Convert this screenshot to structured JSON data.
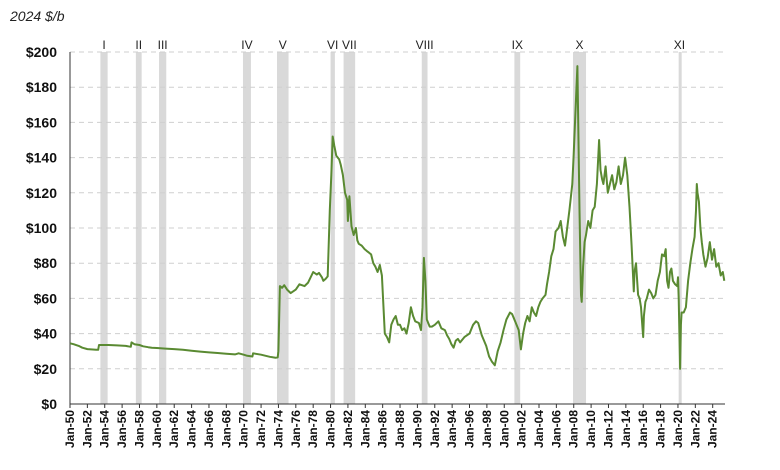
{
  "chart_data": {
    "type": "line",
    "unit_label": "2024 $/b",
    "ylim": [
      0,
      200
    ],
    "xlim": [
      "1950-01",
      "2025-06"
    ],
    "y_ticks": [
      "$0",
      "$20",
      "$40",
      "$60",
      "$80",
      "$100",
      "$120",
      "$140",
      "$160",
      "$180",
      "$200"
    ],
    "y_tick_values": [
      0,
      20,
      40,
      60,
      80,
      100,
      120,
      140,
      160,
      180,
      200
    ],
    "x_ticks": [
      "Jan-50",
      "Jan-52",
      "Jan-54",
      "Jan-56",
      "Jan-58",
      "Jan-60",
      "Jan-62",
      "Jan-64",
      "Jan-66",
      "Jan-68",
      "Jan-70",
      "Jan-72",
      "Jan-74",
      "Jan-76",
      "Jan-78",
      "Jan-80",
      "Jan-82",
      "Jan-84",
      "Jan-86",
      "Jan-88",
      "Jan-90",
      "Jan-92",
      "Jan-94",
      "Jan-96",
      "Jan-98",
      "Jan-00",
      "Jan-02",
      "Jan-04",
      "Jan-06",
      "Jan-08",
      "Jan-10",
      "Jan-12",
      "Jan-14",
      "Jan-16",
      "Jan-18",
      "Jan-20",
      "Jan-22",
      "Jan-24"
    ],
    "grid": "horizontal dashed",
    "line_color": "#5a8a32",
    "band_color": "#d9d9d9",
    "recessions": [
      {
        "label": "I",
        "start": "1953-07",
        "end": "1954-05"
      },
      {
        "label": "II",
        "start": "1957-08",
        "end": "1958-04"
      },
      {
        "label": "III",
        "start": "1960-04",
        "end": "1961-02"
      },
      {
        "label": "IV",
        "start": "1969-12",
        "end": "1970-11"
      },
      {
        "label": "V",
        "start": "1973-11",
        "end": "1975-03"
      },
      {
        "label": "VI",
        "start": "1980-01",
        "end": "1980-07"
      },
      {
        "label": "VII",
        "start": "1981-07",
        "end": "1982-11"
      },
      {
        "label": "VIII",
        "start": "1990-07",
        "end": "1991-03"
      },
      {
        "label": "IX",
        "start": "2001-03",
        "end": "2001-11"
      },
      {
        "label": "X",
        "start": "2007-12",
        "end": "2009-06"
      },
      {
        "label": "XI",
        "start": "2020-02",
        "end": "2020-04"
      }
    ],
    "series": [
      {
        "x": [
          "1950-01",
          "1950-06",
          "1951-01",
          "1951-06",
          "1952-01",
          "1952-06",
          "1953-01",
          "1953-04",
          "1953-05",
          "1954-06",
          "1955-06",
          "1956-06",
          "1957-01",
          "1957-02",
          "1957-06",
          "1958-01",
          "1958-06",
          "1959-01",
          "1959-06",
          "1960-01",
          "1961-01",
          "1962-01",
          "1963-01",
          "1964-01",
          "1965-01",
          "1966-01",
          "1967-01",
          "1968-01",
          "1969-01",
          "1969-06",
          "1970-01",
          "1970-06",
          "1971-01",
          "1971-02",
          "1972-01",
          "1973-01",
          "1973-06",
          "1973-09",
          "1973-12",
          "1974-01",
          "1974-03",
          "1974-06",
          "1974-09",
          "1975-01",
          "1975-06",
          "1976-01",
          "1976-06",
          "1977-01",
          "1977-06",
          "1978-01",
          "1978-06",
          "1978-09",
          "1979-01",
          "1979-03",
          "1979-06",
          "1979-09",
          "1979-12",
          "1980-02",
          "1980-04",
          "1980-06",
          "1980-09",
          "1981-01",
          "1981-03",
          "1981-06",
          "1981-09",
          "1981-12",
          "1982-01",
          "1982-03",
          "1982-06",
          "1982-09",
          "1982-12",
          "1983-02",
          "1983-04",
          "1983-08",
          "1983-12",
          "1984-03",
          "1984-06",
          "1984-09",
          "1984-12",
          "1985-03",
          "1985-06",
          "1985-09",
          "1985-12",
          "1986-02",
          "1986-04",
          "1986-07",
          "1986-10",
          "1987-01",
          "1987-04",
          "1987-07",
          "1987-10",
          "1988-01",
          "1988-04",
          "1988-07",
          "1988-10",
          "1989-01",
          "1989-04",
          "1989-07",
          "1989-10",
          "1990-03",
          "1990-06",
          "1990-08",
          "1990-10",
          "1990-12",
          "1991-02",
          "1991-06",
          "1991-09",
          "1992-01",
          "1992-06",
          "1992-10",
          "1993-03",
          "1993-06",
          "1993-09",
          "1993-12",
          "1994-03",
          "1994-06",
          "1994-09",
          "1994-12",
          "1995-06",
          "1996-01",
          "1996-06",
          "1996-10",
          "1997-01",
          "1997-06",
          "1997-12",
          "1998-04",
          "1998-08",
          "1998-12",
          "1999-04",
          "1999-08",
          "1999-12",
          "2000-04",
          "2000-09",
          "2000-12",
          "2001-04",
          "2001-09",
          "2001-12",
          "2002-03",
          "2002-06",
          "2002-09",
          "2002-12",
          "2003-03",
          "2003-06",
          "2003-09",
          "2003-12",
          "2004-03",
          "2004-06",
          "2004-10",
          "2004-12",
          "2005-03",
          "2005-06",
          "2005-09",
          "2005-12",
          "2006-04",
          "2006-07",
          "2006-10",
          "2007-01",
          "2007-04",
          "2007-07",
          "2007-11",
          "2008-01",
          "2008-04",
          "2008-06",
          "2008-07",
          "2008-09",
          "2008-11",
          "2008-12",
          "2009-02",
          "2009-04",
          "2009-06",
          "2009-09",
          "2009-12",
          "2010-03",
          "2010-06",
          "2010-09",
          "2010-12",
          "2011-02",
          "2011-04",
          "2011-06",
          "2011-09",
          "2011-12",
          "2012-03",
          "2012-06",
          "2012-09",
          "2012-12",
          "2013-03",
          "2013-06",
          "2013-09",
          "2013-12",
          "2014-03",
          "2014-06",
          "2014-09",
          "2014-12",
          "2015-01",
          "2015-03",
          "2015-06",
          "2015-08",
          "2015-10",
          "2015-12",
          "2016-01",
          "2016-02",
          "2016-04",
          "2016-06",
          "2016-09",
          "2016-12",
          "2017-03",
          "2017-06",
          "2017-09",
          "2017-12",
          "2018-03",
          "2018-06",
          "2018-08",
          "2018-10",
          "2018-12",
          "2019-02",
          "2019-04",
          "2019-06",
          "2019-09",
          "2019-12",
          "2020-01",
          "2020-02",
          "2020-03",
          "2020-04",
          "2020-05",
          "2020-06",
          "2020-09",
          "2020-12",
          "2021-03",
          "2021-06",
          "2021-09",
          "2021-12",
          "2022-02",
          "2022-03",
          "2022-04",
          "2022-06",
          "2022-08",
          "2022-10",
          "2022-12",
          "2023-03",
          "2023-06",
          "2023-09",
          "2023-12",
          "2024-03",
          "2024-06",
          "2024-09",
          "2024-12",
          "2025-03",
          "2025-05"
        ],
        "values": [
          34.5,
          34.0,
          33.0,
          32.0,
          31.2,
          31.0,
          30.8,
          30.8,
          33.5,
          33.5,
          33.3,
          33.0,
          32.5,
          35.0,
          34.0,
          33.5,
          32.8,
          32.3,
          32.0,
          31.8,
          31.5,
          31.2,
          30.8,
          30.3,
          29.8,
          29.3,
          29.0,
          28.6,
          28.2,
          28.8,
          28.0,
          27.4,
          27.0,
          28.8,
          28.0,
          26.8,
          26.5,
          26.3,
          26.5,
          30.0,
          67.0,
          66.0,
          67.5,
          65.0,
          63.0,
          65.0,
          68.0,
          67.0,
          69.0,
          75.0,
          73.5,
          74.5,
          72.0,
          70.0,
          71.0,
          72.5,
          110.0,
          130.0,
          152.0,
          147.0,
          141.0,
          139.0,
          136.0,
          130.0,
          120.0,
          116.0,
          104.0,
          118.0,
          101.0,
          96.0,
          100.0,
          93.0,
          91.0,
          90.0,
          88.0,
          87.0,
          86.0,
          85.0,
          80.0,
          78.0,
          75.0,
          79.0,
          73.0,
          56.0,
          40.0,
          38.0,
          35.0,
          45.0,
          48.0,
          50.0,
          45.0,
          45.0,
          42.0,
          43.0,
          40.0,
          46.0,
          55.0,
          50.0,
          47.0,
          46.0,
          42.0,
          55.0,
          83.0,
          70.0,
          48.0,
          44.0,
          44.0,
          45.0,
          47.0,
          43.0,
          42.0,
          39.0,
          37.0,
          34.0,
          32.0,
          36.0,
          37.0,
          35.0,
          38.0,
          40.0,
          45.0,
          47.0,
          46.0,
          39.0,
          33.0,
          27.0,
          24.0,
          22.0,
          30.0,
          35.0,
          42.0,
          48.0,
          52.0,
          51.0,
          47.0,
          42.0,
          31.0,
          40.0,
          46.0,
          50.0,
          47.0,
          55.0,
          52.0,
          50.0,
          55.0,
          58.0,
          60.0,
          62.0,
          68.0,
          75.0,
          84.0,
          88.0,
          98.0,
          100.0,
          104.0,
          95.0,
          90.0,
          100.0,
          110.0,
          125.0,
          142.0,
          172.0,
          192.0,
          165.0,
          110.0,
          62.0,
          58.0,
          78.0,
          92.0,
          96.0,
          104.0,
          100.0,
          110.0,
          112.0,
          125.0,
          150.0,
          133.0,
          128.0,
          125.0,
          135.0,
          120.0,
          125.0,
          130.0,
          122.0,
          126.0,
          135.0,
          125.0,
          130.0,
          140.0,
          130.0,
          112.0,
          90.0,
          64.0,
          75.0,
          80.0,
          62.0,
          60.0,
          55.0,
          43.0,
          38.0,
          50.0,
          58.0,
          60.0,
          65.0,
          63.0,
          60.0,
          62.0,
          70.0,
          75.0,
          85.0,
          84.0,
          88.0,
          70.0,
          66.0,
          75.0,
          77.0,
          70.0,
          68.0,
          67.0,
          72.0,
          60.0,
          40.0,
          20.0,
          45.0,
          52.0,
          52.0,
          55.0,
          70.0,
          80.0,
          88.0,
          95.0,
          110.0,
          125.0,
          120.0,
          115.0,
          100.0,
          92.0,
          85.0,
          78.0,
          83.0,
          92.0,
          82.0,
          88.0,
          78.0,
          80.0,
          73.0,
          75.0,
          70.0
        ]
      }
    ]
  }
}
